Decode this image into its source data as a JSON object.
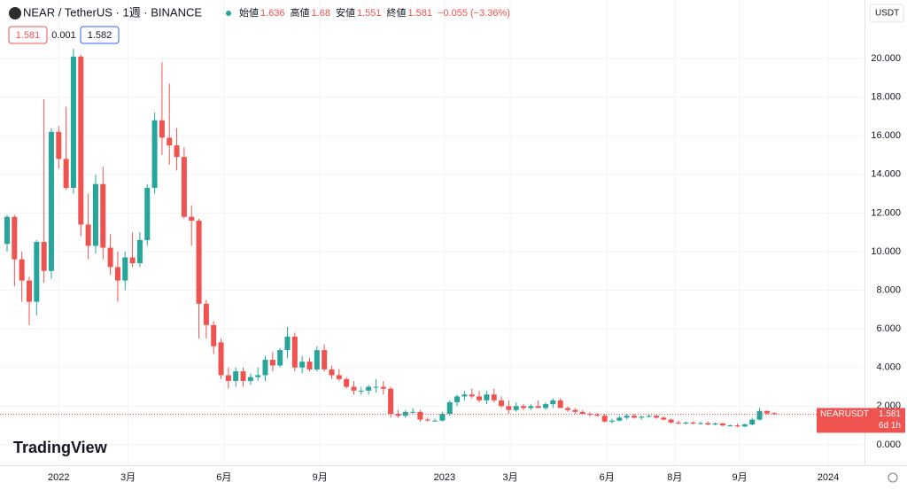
{
  "chart_data": {
    "type": "candlestick",
    "title": "NEAR / TetherUS · 1週 · BINANCE",
    "open": [
      10.4,
      11.8,
      9.6,
      8.5,
      7.4,
      10.5,
      9.0,
      16.2,
      14.8,
      13.3,
      20.1,
      11.4,
      10.3,
      13.5,
      10.2,
      9.2,
      8.5,
      9.7,
      9.4,
      10.6,
      13.3,
      16.8,
      15.9,
      15.5,
      14.9,
      11.8,
      11.6,
      7.3,
      6.2,
      5.3,
      3.6,
      3.3,
      3.8,
      3.3,
      3.5,
      3.6,
      4.4,
      4.1,
      4.9,
      5.6,
      4.0,
      4.3,
      3.9,
      4.9,
      3.9,
      3.6,
      3.4,
      3.0,
      2.8,
      2.8,
      3.0,
      3.0,
      2.9,
      1.6,
      1.5,
      1.7,
      1.7,
      1.3,
      1.25,
      1.25,
      1.6,
      2.2,
      2.5,
      2.6,
      2.5,
      2.3,
      2.6,
      2.3,
      2.0,
      1.8,
      2.0,
      1.9,
      2.0,
      1.9,
      2.1,
      2.3,
      1.9,
      1.8,
      1.7,
      1.6,
      1.55,
      1.5,
      1.2,
      1.25,
      1.4,
      1.5,
      1.4,
      1.45,
      1.5,
      1.4,
      1.3,
      1.15,
      1.1,
      1.15,
      1.1,
      1.12,
      1.05,
      1.1,
      1.0,
      1.0,
      0.95,
      1.05,
      1.3,
      1.75,
      1.636
    ],
    "high": [
      11.9,
      11.9,
      10.0,
      8.7,
      10.6,
      17.9,
      16.4,
      16.5,
      17.5,
      20.5,
      20.2,
      13.0,
      14.0,
      14.4,
      10.9,
      10.0,
      10.0,
      11.0,
      11.0,
      13.5,
      17.2,
      19.8,
      18.7,
      16.4,
      15.4,
      12.4,
      11.7,
      7.5,
      6.4,
      5.5,
      4.0,
      4.0,
      4.0,
      3.7,
      4.0,
      4.6,
      4.8,
      5.0,
      6.1,
      5.8,
      4.6,
      4.5,
      5.1,
      5.2,
      4.1,
      3.9,
      3.5,
      3.3,
      3.0,
      3.1,
      3.4,
      3.3,
      3.0,
      1.8,
      1.8,
      1.9,
      1.8,
      1.4,
      1.35,
      1.7,
      2.3,
      2.6,
      2.8,
      2.9,
      2.8,
      2.8,
      2.9,
      2.5,
      2.3,
      2.2,
      2.1,
      2.1,
      2.3,
      2.2,
      2.4,
      2.4,
      2.0,
      1.9,
      1.8,
      1.7,
      1.65,
      1.6,
      1.35,
      1.5,
      1.6,
      1.6,
      1.5,
      1.6,
      1.55,
      1.45,
      1.35,
      1.25,
      1.2,
      1.2,
      1.2,
      1.2,
      1.15,
      1.15,
      1.05,
      1.1,
      1.1,
      1.4,
      1.9,
      1.78,
      1.68
    ],
    "low": [
      10.0,
      8.2,
      7.4,
      6.2,
      6.7,
      8.4,
      8.6,
      14.3,
      13.2,
      13.0,
      10.8,
      9.6,
      9.9,
      9.6,
      8.8,
      7.4,
      8.0,
      9.2,
      9.2,
      10.3,
      13.0,
      15.0,
      14.5,
      14.2,
      11.7,
      10.3,
      5.5,
      5.5,
      4.7,
      3.4,
      2.9,
      3.0,
      3.0,
      3.1,
      3.3,
      3.3,
      3.8,
      4.0,
      4.5,
      3.8,
      3.7,
      3.8,
      3.8,
      3.8,
      3.4,
      3.3,
      2.9,
      2.6,
      2.6,
      2.6,
      2.7,
      2.6,
      1.4,
      1.4,
      1.4,
      1.6,
      1.2,
      1.2,
      1.2,
      1.2,
      1.5,
      2.0,
      2.3,
      2.4,
      2.2,
      2.1,
      2.2,
      1.9,
      1.6,
      1.7,
      1.8,
      1.8,
      1.9,
      1.8,
      1.9,
      1.9,
      1.7,
      1.6,
      1.55,
      1.45,
      1.45,
      1.15,
      1.1,
      1.2,
      1.3,
      1.35,
      1.3,
      1.4,
      1.35,
      1.25,
      1.1,
      1.05,
      1.05,
      1.05,
      1.05,
      1.0,
      1.0,
      0.95,
      0.95,
      0.9,
      0.9,
      1.0,
      1.25,
      1.55,
      1.551
    ],
    "close": [
      11.8,
      9.6,
      8.5,
      7.4,
      10.5,
      9.0,
      16.2,
      14.8,
      13.3,
      20.1,
      11.4,
      10.3,
      13.5,
      10.2,
      9.2,
      8.5,
      9.7,
      9.4,
      10.6,
      13.3,
      16.8,
      15.9,
      15.5,
      14.9,
      11.8,
      11.6,
      7.3,
      6.2,
      5.1,
      3.6,
      3.3,
      3.8,
      3.3,
      3.5,
      3.6,
      4.4,
      4.1,
      4.9,
      5.6,
      4.0,
      4.3,
      3.9,
      4.9,
      3.9,
      3.6,
      3.4,
      3.0,
      2.8,
      2.8,
      3.0,
      3.0,
      2.9,
      1.6,
      1.5,
      1.7,
      1.7,
      1.3,
      1.25,
      1.25,
      1.6,
      2.2,
      2.5,
      2.6,
      2.5,
      2.3,
      2.6,
      2.3,
      2.0,
      1.8,
      2.0,
      1.9,
      2.0,
      1.9,
      2.1,
      2.3,
      1.9,
      1.8,
      1.7,
      1.6,
      1.55,
      1.5,
      1.2,
      1.25,
      1.4,
      1.5,
      1.4,
      1.45,
      1.5,
      1.4,
      1.3,
      1.15,
      1.1,
      1.15,
      1.1,
      1.12,
      1.05,
      1.1,
      1.0,
      1.0,
      0.95,
      1.05,
      1.3,
      1.75,
      1.62,
      1.581
    ],
    "up_color": "#26a69a",
    "down_color": "#ef5350",
    "grid": true,
    "xlim": [
      -0.96,
      116.1
    ],
    "ylim": [
      -1.06,
      23.03
    ],
    "xticks": [
      {
        "value": 7,
        "label": "2022"
      },
      {
        "value": 16.4,
        "label": "3月"
      },
      {
        "value": 29.4,
        "label": "6月"
      },
      {
        "value": 42.4,
        "label": "9月"
      },
      {
        "value": 59.3,
        "label": "2023"
      },
      {
        "value": 68.2,
        "label": "3月"
      },
      {
        "value": 81.3,
        "label": "6月"
      },
      {
        "value": 90.5,
        "label": "8月"
      },
      {
        "value": 99.3,
        "label": "9月"
      },
      {
        "value": 111.3,
        "label": "2024"
      }
    ],
    "yticks": [
      {
        "value": 0,
        "label": "0.000"
      },
      {
        "value": 2,
        "label": "2.000"
      },
      {
        "value": 4,
        "label": "4.000"
      },
      {
        "value": 6,
        "label": "6.000"
      },
      {
        "value": 8,
        "label": "8.000"
      },
      {
        "value": 10,
        "label": "10.000"
      },
      {
        "value": 12,
        "label": "12.000"
      },
      {
        "value": 14,
        "label": "14.000"
      },
      {
        "value": 16,
        "label": "16.000"
      },
      {
        "value": 18,
        "label": "18.000"
      },
      {
        "value": 20,
        "label": "20.000"
      }
    ],
    "ohlc_labels": [
      "始値",
      "高値",
      "安値",
      "終値"
    ],
    "change": "−0.055 (−3.36%)",
    "spread": 0.001,
    "ask": 1.582,
    "currency": "USDT",
    "symbol_tag": "NEARUSDT",
    "countdown": "6d 1h",
    "logo": "TradingView"
  }
}
